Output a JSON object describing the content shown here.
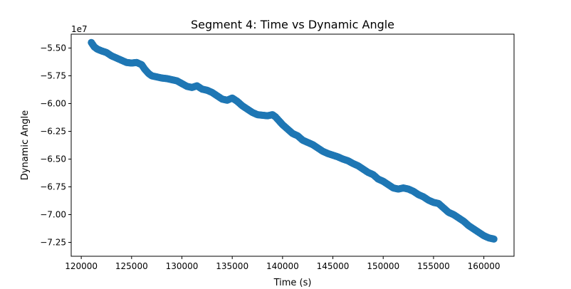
{
  "chart_data": {
    "type": "scatter",
    "title": "Segment 4: Time vs Dynamic Angle",
    "xlabel": "Time (s)",
    "ylabel": "Dynamic Angle",
    "y_offset_label": "1e7",
    "xlim": [
      119000,
      163000
    ],
    "ylim": [
      -73750000,
      -53750000
    ],
    "xticks": [
      120000,
      125000,
      130000,
      135000,
      140000,
      145000,
      150000,
      155000,
      160000
    ],
    "xtick_labels": [
      "120000",
      "125000",
      "130000",
      "135000",
      "140000",
      "145000",
      "150000",
      "155000",
      "160000"
    ],
    "yticks": [
      -55000000,
      -57500000,
      -60000000,
      -62500000,
      -65000000,
      -67500000,
      -70000000,
      -72500000
    ],
    "ytick_labels": [
      "−5.50",
      "−5.75",
      "−6.00",
      "−6.25",
      "−6.50",
      "−6.75",
      "−7.00",
      "−7.25"
    ],
    "grid": false,
    "marker_color": "#1f77b4",
    "series": [
      {
        "x": [
          121000,
          121300,
          121600,
          122000,
          122500,
          123000,
          123500,
          124000,
          124500,
          125000,
          125500,
          126000,
          126300,
          126700,
          127000,
          127500,
          128000,
          128500,
          129000,
          129500,
          130000,
          130500,
          131000,
          131500,
          132000,
          132500,
          133000,
          133500,
          134000,
          134500,
          135000,
          135500,
          136000,
          136500,
          137000,
          137500,
          138000,
          138500,
          139000,
          139300,
          139700,
          140000,
          140500,
          141000,
          141500,
          142000,
          142500,
          143000,
          143500,
          144000,
          144500,
          145000,
          145500,
          146000,
          146500,
          147000,
          147500,
          148000,
          148500,
          149000,
          149500,
          150000,
          150500,
          151000,
          151500,
          152000,
          152500,
          153000,
          153500,
          154000,
          154500,
          155000,
          155500,
          156000,
          156500,
          157000,
          157500,
          158000,
          158500,
          159000,
          159500,
          160000,
          160500,
          161000
        ],
        "y": [
          -54500000,
          -54900000,
          -55100000,
          -55250000,
          -55400000,
          -55700000,
          -55900000,
          -56100000,
          -56300000,
          -56350000,
          -56300000,
          -56500000,
          -56900000,
          -57300000,
          -57500000,
          -57600000,
          -57700000,
          -57750000,
          -57850000,
          -57950000,
          -58200000,
          -58450000,
          -58550000,
          -58400000,
          -58700000,
          -58800000,
          -59000000,
          -59300000,
          -59600000,
          -59700000,
          -59500000,
          -59800000,
          -60200000,
          -60500000,
          -60800000,
          -61000000,
          -61050000,
          -61100000,
          -61000000,
          -61200000,
          -61600000,
          -61900000,
          -62300000,
          -62700000,
          -62900000,
          -63300000,
          -63500000,
          -63700000,
          -64000000,
          -64300000,
          -64500000,
          -64650000,
          -64800000,
          -65000000,
          -65150000,
          -65400000,
          -65600000,
          -65900000,
          -66200000,
          -66400000,
          -66800000,
          -67000000,
          -67300000,
          -67600000,
          -67700000,
          -67600000,
          -67700000,
          -67900000,
          -68200000,
          -68400000,
          -68700000,
          -68900000,
          -69000000,
          -69400000,
          -69800000,
          -70000000,
          -70300000,
          -70600000,
          -71000000,
          -71300000,
          -71600000,
          -71900000,
          -72100000,
          -72200000
        ]
      }
    ]
  }
}
